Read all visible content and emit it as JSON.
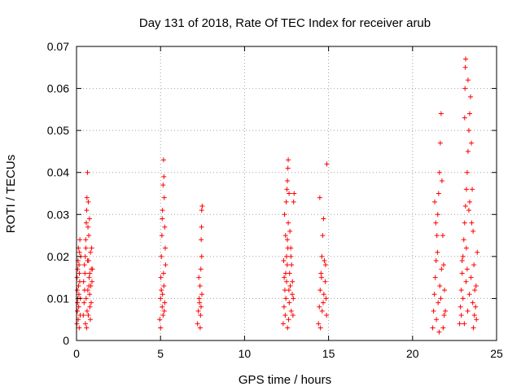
{
  "chart_data": {
    "type": "scatter",
    "title": "Day 131 of 2018, Rate Of TEC Index for receiver arub",
    "xlabel": "GPS time / hours",
    "ylabel": "ROTI / TECUs",
    "xlim": [
      0,
      25
    ],
    "ylim": [
      0,
      0.07
    ],
    "xticks": [
      "0",
      "5",
      "10",
      "15",
      "20",
      "25"
    ],
    "yticks": [
      "0",
      "0.01",
      "0.02",
      "0.03",
      "0.04",
      "0.05",
      "0.06",
      "0.07"
    ],
    "grid": true,
    "marker": "plus",
    "color": "#ff0000",
    "series": [
      {
        "points": [
          [
            0.02,
            0.004
          ],
          [
            0.05,
            0.007
          ],
          [
            0.08,
            0.01
          ],
          [
            0.1,
            0.005
          ],
          [
            0.12,
            0.013
          ],
          [
            0.15,
            0.018
          ],
          [
            0.18,
            0.021
          ],
          [
            0.2,
            0.024
          ],
          [
            0.03,
            0.015
          ],
          [
            0.06,
            0.009
          ],
          [
            0.09,
            0.019
          ],
          [
            0.14,
            0.011
          ],
          [
            0.17,
            0.016
          ],
          [
            0.22,
            0.006
          ],
          [
            0.25,
            0.02
          ],
          [
            0.11,
            0.022
          ],
          [
            0.04,
            0.012
          ],
          [
            0.13,
            0.008
          ],
          [
            0.19,
            0.014
          ],
          [
            0.07,
            0.017
          ],
          [
            0.23,
            0.01
          ],
          [
            0.16,
            0.003
          ],
          [
            0.4,
            0.006
          ],
          [
            0.45,
            0.009
          ],
          [
            0.48,
            0.012
          ],
          [
            0.5,
            0.016
          ],
          [
            0.52,
            0.02
          ],
          [
            0.55,
            0.024
          ],
          [
            0.58,
            0.028
          ],
          [
            0.6,
            0.031
          ],
          [
            0.62,
            0.034
          ],
          [
            0.65,
            0.04
          ],
          [
            0.68,
            0.027
          ],
          [
            0.7,
            0.033
          ],
          [
            0.72,
            0.019
          ],
          [
            0.75,
            0.015
          ],
          [
            0.78,
            0.011
          ],
          [
            0.8,
            0.008
          ],
          [
            0.82,
            0.005
          ],
          [
            0.85,
            0.013
          ],
          [
            0.88,
            0.017
          ],
          [
            0.9,
            0.022
          ],
          [
            0.42,
            0.014
          ],
          [
            0.47,
            0.018
          ],
          [
            0.53,
            0.004
          ],
          [
            0.57,
            0.01
          ],
          [
            0.63,
            0.007
          ],
          [
            0.67,
            0.012
          ],
          [
            0.73,
            0.025
          ],
          [
            0.77,
            0.029
          ],
          [
            0.83,
            0.021
          ],
          [
            0.87,
            0.009
          ],
          [
            0.92,
            0.014
          ],
          [
            0.95,
            0.017
          ],
          [
            0.6,
            0.003
          ],
          [
            0.7,
            0.006
          ],
          [
            0.74,
            0.013
          ],
          [
            0.79,
            0.016
          ],
          [
            0.66,
            0.019
          ],
          [
            0.56,
            0.022
          ],
          [
            4.95,
            0.005
          ],
          [
            5.0,
            0.01
          ],
          [
            5.02,
            0.015
          ],
          [
            5.05,
            0.02
          ],
          [
            5.08,
            0.025
          ],
          [
            5.1,
            0.029
          ],
          [
            5.12,
            0.031
          ],
          [
            5.15,
            0.037
          ],
          [
            5.18,
            0.043
          ],
          [
            5.2,
            0.039
          ],
          [
            5.22,
            0.034
          ],
          [
            5.25,
            0.027
          ],
          [
            5.28,
            0.022
          ],
          [
            5.3,
            0.018
          ],
          [
            5.05,
            0.012
          ],
          [
            5.1,
            0.008
          ],
          [
            5.15,
            0.006
          ],
          [
            5.2,
            0.013
          ],
          [
            5.25,
            0.009
          ],
          [
            5.18,
            0.016
          ],
          [
            5.0,
            0.003
          ],
          [
            5.12,
            0.011
          ],
          [
            5.22,
            0.007
          ],
          [
            7.2,
            0.004
          ],
          [
            7.25,
            0.007
          ],
          [
            7.3,
            0.01
          ],
          [
            7.35,
            0.013
          ],
          [
            7.4,
            0.017
          ],
          [
            7.45,
            0.02
          ],
          [
            7.42,
            0.024
          ],
          [
            7.44,
            0.027
          ],
          [
            7.45,
            0.031
          ],
          [
            7.48,
            0.032
          ],
          [
            7.32,
            0.009
          ],
          [
            7.38,
            0.006
          ],
          [
            7.46,
            0.011
          ],
          [
            7.28,
            0.015
          ],
          [
            7.36,
            0.003
          ],
          [
            7.41,
            0.008
          ],
          [
            12.3,
            0.004
          ],
          [
            12.35,
            0.008
          ],
          [
            12.4,
            0.012
          ],
          [
            12.45,
            0.016
          ],
          [
            12.5,
            0.02
          ],
          [
            12.55,
            0.024
          ],
          [
            12.6,
            0.028
          ],
          [
            12.38,
            0.03
          ],
          [
            12.48,
            0.033
          ],
          [
            12.52,
            0.036
          ],
          [
            12.55,
            0.038
          ],
          [
            12.58,
            0.041
          ],
          [
            12.6,
            0.043
          ],
          [
            12.65,
            0.035
          ],
          [
            12.7,
            0.026
          ],
          [
            12.75,
            0.022
          ],
          [
            12.8,
            0.018
          ],
          [
            12.85,
            0.014
          ],
          [
            12.9,
            0.01
          ],
          [
            12.95,
            0.035
          ],
          [
            12.92,
            0.033
          ],
          [
            12.42,
            0.006
          ],
          [
            12.46,
            0.01
          ],
          [
            12.5,
            0.014
          ],
          [
            12.54,
            0.018
          ],
          [
            12.58,
            0.022
          ],
          [
            12.62,
            0.005
          ],
          [
            12.66,
            0.009
          ],
          [
            12.72,
            0.013
          ],
          [
            12.78,
            0.007
          ],
          [
            12.84,
            0.011
          ],
          [
            12.33,
            0.019
          ],
          [
            12.44,
            0.025
          ],
          [
            12.56,
            0.003
          ],
          [
            12.68,
            0.016
          ],
          [
            12.76,
            0.02
          ],
          [
            12.88,
            0.006
          ],
          [
            12.36,
            0.015
          ],
          [
            12.64,
            0.012
          ],
          [
            14.4,
            0.004
          ],
          [
            14.45,
            0.008
          ],
          [
            14.5,
            0.012
          ],
          [
            14.55,
            0.016
          ],
          [
            14.6,
            0.02
          ],
          [
            14.65,
            0.025
          ],
          [
            14.7,
            0.029
          ],
          [
            14.75,
            0.019
          ],
          [
            14.8,
            0.014
          ],
          [
            14.85,
            0.01
          ],
          [
            14.88,
            0.006
          ],
          [
            14.48,
            0.034
          ],
          [
            14.9,
            0.042
          ],
          [
            14.52,
            0.003
          ],
          [
            14.62,
            0.007
          ],
          [
            14.72,
            0.011
          ],
          [
            14.58,
            0.015
          ],
          [
            14.68,
            0.009
          ],
          [
            14.82,
            0.018
          ],
          [
            21.2,
            0.003
          ],
          [
            21.25,
            0.007
          ],
          [
            21.3,
            0.011
          ],
          [
            21.35,
            0.015
          ],
          [
            21.4,
            0.019
          ],
          [
            21.45,
            0.025
          ],
          [
            21.5,
            0.03
          ],
          [
            21.55,
            0.035
          ],
          [
            21.6,
            0.04
          ],
          [
            21.65,
            0.047
          ],
          [
            21.7,
            0.054
          ],
          [
            21.75,
            0.038
          ],
          [
            21.8,
            0.025
          ],
          [
            21.85,
            0.018
          ],
          [
            21.9,
            0.012
          ],
          [
            21.95,
            0.007
          ],
          [
            21.32,
            0.033
          ],
          [
            21.42,
            0.005
          ],
          [
            21.52,
            0.009
          ],
          [
            21.62,
            0.013
          ],
          [
            21.72,
            0.017
          ],
          [
            21.82,
            0.003
          ],
          [
            21.48,
            0.021
          ],
          [
            21.58,
            0.002
          ],
          [
            21.68,
            0.01
          ],
          [
            21.38,
            0.028
          ],
          [
            21.88,
            0.006
          ],
          [
            22.8,
            0.004
          ],
          [
            22.85,
            0.008
          ],
          [
            22.9,
            0.012
          ],
          [
            22.95,
            0.016
          ],
          [
            23.0,
            0.02
          ],
          [
            23.05,
            0.024
          ],
          [
            23.1,
            0.028
          ],
          [
            23.15,
            0.032
          ],
          [
            23.2,
            0.036
          ],
          [
            23.25,
            0.04
          ],
          [
            23.3,
            0.045
          ],
          [
            23.35,
            0.05
          ],
          [
            23.4,
            0.054
          ],
          [
            23.45,
            0.058
          ],
          [
            23.5,
            0.047
          ],
          [
            23.55,
            0.036
          ],
          [
            23.6,
            0.026
          ],
          [
            23.65,
            0.018
          ],
          [
            23.7,
            0.012
          ],
          [
            23.75,
            0.008
          ],
          [
            23.8,
            0.005
          ],
          [
            23.1,
            0.053
          ],
          [
            23.12,
            0.06
          ],
          [
            23.14,
            0.065
          ],
          [
            23.16,
            0.067
          ],
          [
            23.3,
            0.062
          ],
          [
            23.35,
            0.031
          ],
          [
            23.2,
            0.022
          ],
          [
            22.9,
            0.006
          ],
          [
            23.0,
            0.01
          ],
          [
            23.08,
            0.004
          ],
          [
            23.18,
            0.014
          ],
          [
            23.28,
            0.007
          ],
          [
            23.38,
            0.011
          ],
          [
            23.48,
            0.015
          ],
          [
            23.58,
            0.009
          ],
          [
            23.68,
            0.006
          ],
          [
            23.78,
            0.013
          ],
          [
            23.85,
            0.021
          ],
          [
            23.4,
            0.033
          ],
          [
            23.52,
            0.028
          ],
          [
            23.62,
            0.003
          ],
          [
            22.95,
            0.019
          ],
          [
            23.25,
            0.017
          ]
        ]
      }
    ]
  }
}
